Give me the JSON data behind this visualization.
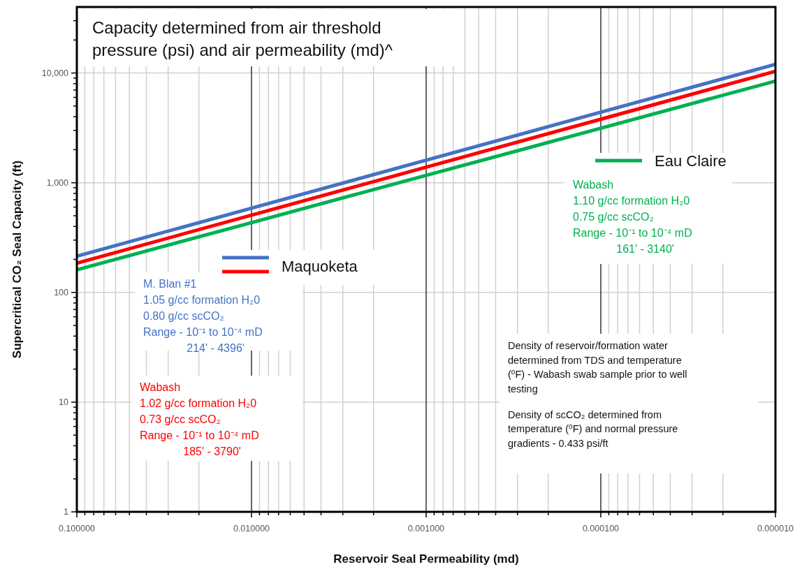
{
  "chart_data": {
    "type": "line",
    "title": "Capacity determined from air threshold\npressure (psi) and air permeability (md)^",
    "xlabel": "Reservoir Seal Permeability (md)",
    "ylabel": "Supercritical CO₂ Seal Capacity (ft)",
    "x": [
      0.1,
      0.01,
      0.001,
      0.0001,
      1e-05
    ],
    "series": [
      {
        "name": "Maquoketa",
        "color": "#4472c4",
        "values": [
          214,
          586,
          1605,
          4396,
          12000
        ]
      },
      {
        "color": "#ff0000",
        "values": [
          185,
          506,
          1386,
          3790,
          10370
        ]
      },
      {
        "name": "Eau Claire",
        "color": "#00b050",
        "values": [
          161,
          433,
          1167,
          3140,
          8450
        ]
      }
    ],
    "log": "xy",
    "xlim": [
      0.1,
      1e-05
    ],
    "ylim": [
      1,
      40000
    ],
    "xticks": [
      {
        "value": 0.1,
        "label": "0.100000"
      },
      {
        "value": 0.09,
        "label": null
      },
      {
        "value": 0.08,
        "label": null
      },
      {
        "value": 0.07,
        "label": null
      },
      {
        "value": 0.06,
        "label": null
      },
      {
        "value": 0.05,
        "label": null
      },
      {
        "value": 0.04,
        "label": null
      },
      {
        "value": 0.03,
        "label": null
      },
      {
        "value": 0.02,
        "label": null
      },
      {
        "value": 0.01,
        "label": "0.010000"
      },
      {
        "value": 0.009,
        "label": null
      },
      {
        "value": 0.008,
        "label": null
      },
      {
        "value": 0.007,
        "label": null
      },
      {
        "value": 0.006,
        "label": null
      },
      {
        "value": 0.005,
        "label": null
      },
      {
        "value": 0.004,
        "label": null
      },
      {
        "value": 0.003,
        "label": null
      },
      {
        "value": 0.002,
        "label": null
      },
      {
        "value": 0.001,
        "label": "0.001000"
      },
      {
        "value": 0.0009,
        "label": null
      },
      {
        "value": 0.0008,
        "label": null
      },
      {
        "value": 0.0007,
        "label": null
      },
      {
        "value": 0.0006,
        "label": null
      },
      {
        "value": 0.0005,
        "label": null
      },
      {
        "value": 0.0004,
        "label": null
      },
      {
        "value": 0.0003,
        "label": null
      },
      {
        "value": 0.0002,
        "label": null
      },
      {
        "value": 0.0001,
        "label": "0.000100"
      },
      {
        "value": 9e-05,
        "label": null
      },
      {
        "value": 8e-05,
        "label": null
      },
      {
        "value": 7e-05,
        "label": null
      },
      {
        "value": 6e-05,
        "label": null
      },
      {
        "value": 5e-05,
        "label": null
      },
      {
        "value": 4e-05,
        "label": null
      },
      {
        "value": 3e-05,
        "label": null
      },
      {
        "value": 2e-05,
        "label": null
      },
      {
        "value": 1e-05,
        "label": "0.000010"
      }
    ],
    "yticks": [
      1,
      {
        "value": 2,
        "label": null
      },
      {
        "value": 3,
        "label": null
      },
      {
        "value": 4,
        "label": null
      },
      {
        "value": 5,
        "label": null
      },
      {
        "value": 6,
        "label": null
      },
      {
        "value": 7,
        "label": null
      },
      {
        "value": 8,
        "label": null
      },
      {
        "value": 9,
        "label": null
      },
      10,
      {
        "value": 20,
        "label": null
      },
      {
        "value": 30,
        "label": null
      },
      {
        "value": 40,
        "label": null
      },
      {
        "value": 50,
        "label": null
      },
      {
        "value": 60,
        "label": null
      },
      {
        "value": 70,
        "label": null
      },
      {
        "value": 80,
        "label": null
      },
      {
        "value": 90,
        "label": null
      },
      100,
      {
        "value": 200,
        "label": null
      },
      {
        "value": 300,
        "label": null
      },
      {
        "value": 400,
        "label": null
      },
      {
        "value": 500,
        "label": null
      },
      {
        "value": 600,
        "label": null
      },
      {
        "value": 700,
        "label": null
      },
      {
        "value": 800,
        "label": null
      },
      {
        "value": 900,
        "label": null
      },
      {
        "value": 1000,
        "label": "1,000"
      },
      {
        "value": 2000,
        "label": null
      },
      {
        "value": 3000,
        "label": null
      },
      {
        "value": 4000,
        "label": null
      },
      {
        "value": 5000,
        "label": null
      },
      {
        "value": 6000,
        "label": null
      },
      {
        "value": 7000,
        "label": null
      },
      {
        "value": 8000,
        "label": null
      },
      {
        "value": 9000,
        "label": null
      },
      {
        "value": 10000,
        "label": "10,000"
      },
      {
        "value": 20000,
        "label": null
      },
      {
        "value": 30000,
        "label": null
      }
    ],
    "grid": true,
    "legend": "center",
    "marker": "none",
    "line_style": "solid",
    "annotations": [
      "M. Blan #1\n1.05 g/cc formation H₂0\n0.80 g/cc scCO₂\nRange - 10⁻¹ to 10⁻⁴ mD\n              214' - 4396'",
      "Wabash\n1.02 g/cc formation H₂0\n0.73 g/cc scCO₂\nRange - 10⁻¹ to 10⁻⁴ mD\n              185' - 3790'",
      "Wabash\n1.10 g/cc formation H₂0\n0.75 g/cc scCO₂\nRange - 10⁻¹ to 10⁻⁴ mD\n              161' - 3140'",
      "Density of reservoir/formation water\ndetermined from TDS and temperature\n($^{o}$F) - Wabash swab sample prior to well\ntesting\n\nDensity of scCO₂ determined from\ntemperature ($^{o}$F) and normal pressure\ngradients - 0.433 psi/ft"
    ]
  }
}
